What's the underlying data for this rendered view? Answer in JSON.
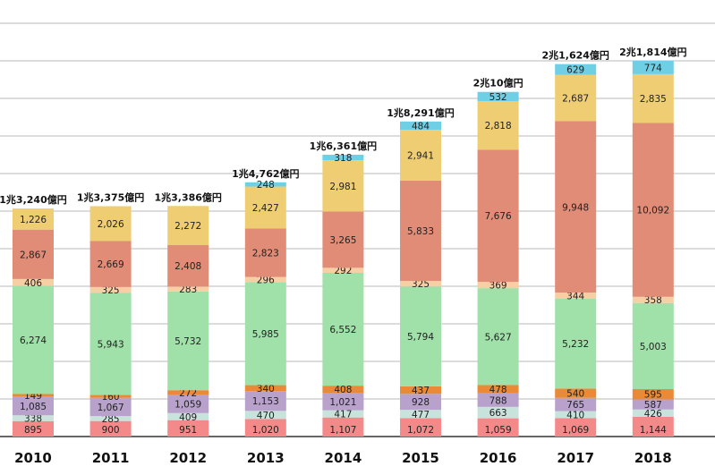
{
  "chart_data": {
    "type": "bar",
    "stacked": true,
    "title": "",
    "xlabel": "",
    "ylabel": "",
    "grid": true,
    "legend": "none",
    "categories": [
      "2010",
      "2011",
      "2012",
      "2013",
      "2014",
      "2015",
      "2016",
      "2017",
      "2018"
    ],
    "totals_labels": [
      "1兆3,240億円",
      "1兆3,375億円",
      "1兆3,386億円",
      "1兆4,762億円",
      "1兆6,361億円",
      "1兆8,291億円",
      "2兆10億円",
      "2兆1,624億円",
      "2兆1,814億円"
    ],
    "series": [
      {
        "color": "#f4898a",
        "values": [
          895,
          900,
          951,
          1020,
          1107,
          1072,
          1059,
          1069,
          1144
        ]
      },
      {
        "color": "#c8e3dc",
        "values": [
          338,
          285,
          409,
          470,
          417,
          477,
          663,
          410,
          426
        ]
      },
      {
        "color": "#b8a2cc",
        "values": [
          1085,
          1067,
          1059,
          1153,
          1021,
          928,
          788,
          765,
          587
        ]
      },
      {
        "color": "#ea8a36",
        "values": [
          149,
          160,
          272,
          340,
          408,
          437,
          478,
          540,
          595
        ]
      },
      {
        "color": "#9fe1a8",
        "values": [
          6274,
          5943,
          5732,
          5985,
          6552,
          5794,
          5627,
          5232,
          5003
        ]
      },
      {
        "color": "#f7cfa4",
        "values": [
          406,
          325,
          283,
          296,
          292,
          325,
          369,
          344,
          358
        ]
      },
      {
        "color": "#e18c77",
        "values": [
          2867,
          2669,
          2408,
          2823,
          3265,
          5833,
          7676,
          9948,
          10092
        ]
      },
      {
        "color": "#efcd72",
        "values": [
          1226,
          2026,
          2272,
          2427,
          2981,
          2941,
          2818,
          2687,
          2835
        ]
      },
      {
        "color": "#6fcfe5",
        "values": [
          0,
          0,
          0,
          248,
          318,
          484,
          532,
          629,
          774
        ]
      }
    ]
  },
  "colors": {
    "gridline": "#b8b8b8",
    "axis": "#333333",
    "text": "#222222"
  }
}
